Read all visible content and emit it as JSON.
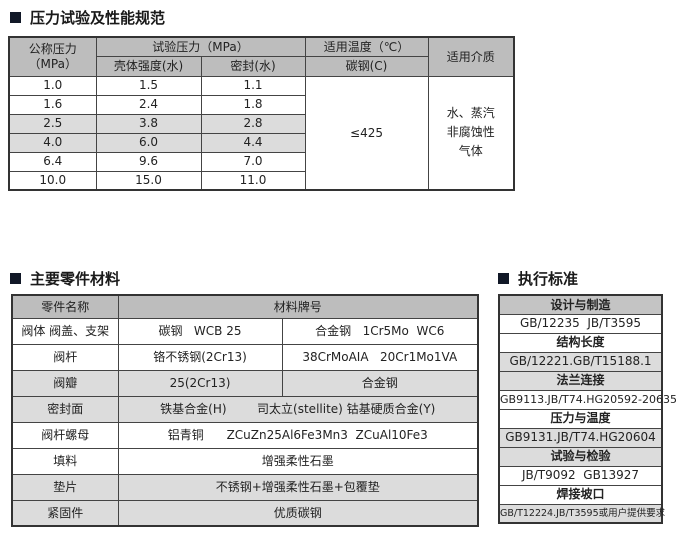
{
  "section1": {
    "title": "压力试验及性能规范",
    "headers": {
      "nominal": "公称压力",
      "nominal_unit": "（MPa）",
      "test": "试验压力（MPa）",
      "shell": "壳体强度(水)",
      "seal": "密封(水)",
      "temp": "适用温度（℃）",
      "carbon": "碳钢(C)",
      "medium": "适用介质"
    },
    "rows": [
      [
        "1.0",
        "1.5",
        "1.1"
      ],
      [
        "1.6",
        "2.4",
        "1.8"
      ],
      [
        "2.5",
        "3.8",
        "2.8"
      ],
      [
        "4.0",
        "6.0",
        "4.4"
      ],
      [
        "6.4",
        "9.6",
        "7.0"
      ],
      [
        "10.0",
        "15.0",
        "11.0"
      ]
    ],
    "temp_value": "≤425",
    "medium_lines": [
      "水、蒸汽",
      "非腐蚀性",
      "气体"
    ]
  },
  "section2": {
    "title": "主要零件材料",
    "headers": [
      "零件名称",
      "材料牌号"
    ],
    "rows": [
      {
        "part": "阀体  阀盖、支架",
        "a": "碳钢   WCB 25",
        "b": "合金钢   1Cr5Mo  WC6"
      },
      {
        "part": "阀杆",
        "a": "铬不锈钢(2Cr13)",
        "b": "38CrMoAIA   20Cr1Mo1VA"
      },
      {
        "part": "阀瓣",
        "a": "25(2Cr13)",
        "b": "合金钢"
      },
      {
        "part": "密封面",
        "full": "铁基合金(H)        司太立(stellite) 钴基硬质合金(Y)"
      },
      {
        "part": "阀杆螺母",
        "full": "铝青铜      ZCuZn25Al6Fe3Mn3  ZCuAl10Fe3"
      },
      {
        "part": "填料",
        "full": "增强柔性石墨"
      },
      {
        "part": "垫片",
        "full": "不锈钢+增强柔性石墨+包覆垫"
      },
      {
        "part": "紧固件",
        "full": "优质碳钢"
      }
    ]
  },
  "section3": {
    "title": "执行标准",
    "rows": [
      "设计与制造",
      "GB/12235  JB/T3595",
      "结构长度",
      "GB/12221.GB/T15188.1",
      "法兰连接",
      "GB9113.JB/T74.HG20592-20635",
      "压力与温度",
      "GB9131.JB/T74.HG20604",
      "试验与检验",
      "JB/T9092  GB13927",
      "焊接坡口",
      "GB/T12224.JB/T3595或用户提供要求"
    ]
  }
}
